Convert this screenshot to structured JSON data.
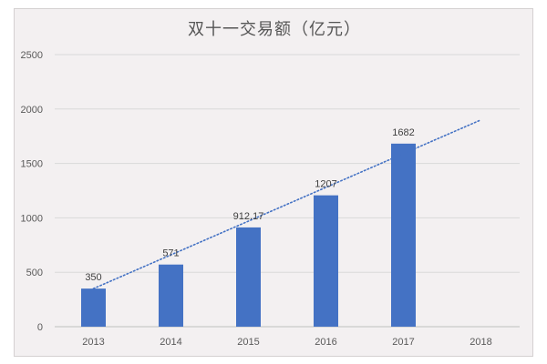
{
  "chart_data": {
    "type": "bar",
    "title": "双十一交易额（亿元）",
    "categories": [
      "2013",
      "2014",
      "2015",
      "2016",
      "2017",
      "2018"
    ],
    "values": [
      350,
      571,
      912.17,
      1207,
      1682,
      null
    ],
    "data_labels": [
      "350",
      "571",
      "912.17",
      "1207",
      "1682",
      ""
    ],
    "ylim": [
      0,
      2500
    ],
    "yticks": [
      "0",
      "500",
      "1000",
      "1500",
      "2000",
      "2500"
    ],
    "grid": true,
    "legend": "none",
    "bar_color": "#4472c4",
    "trendline": {
      "type": "linear",
      "style": "dotted",
      "color": "#4472c4",
      "from": {
        "x": "2013",
        "y": 350
      },
      "to": {
        "x": "2018",
        "y": 1900
      }
    }
  }
}
